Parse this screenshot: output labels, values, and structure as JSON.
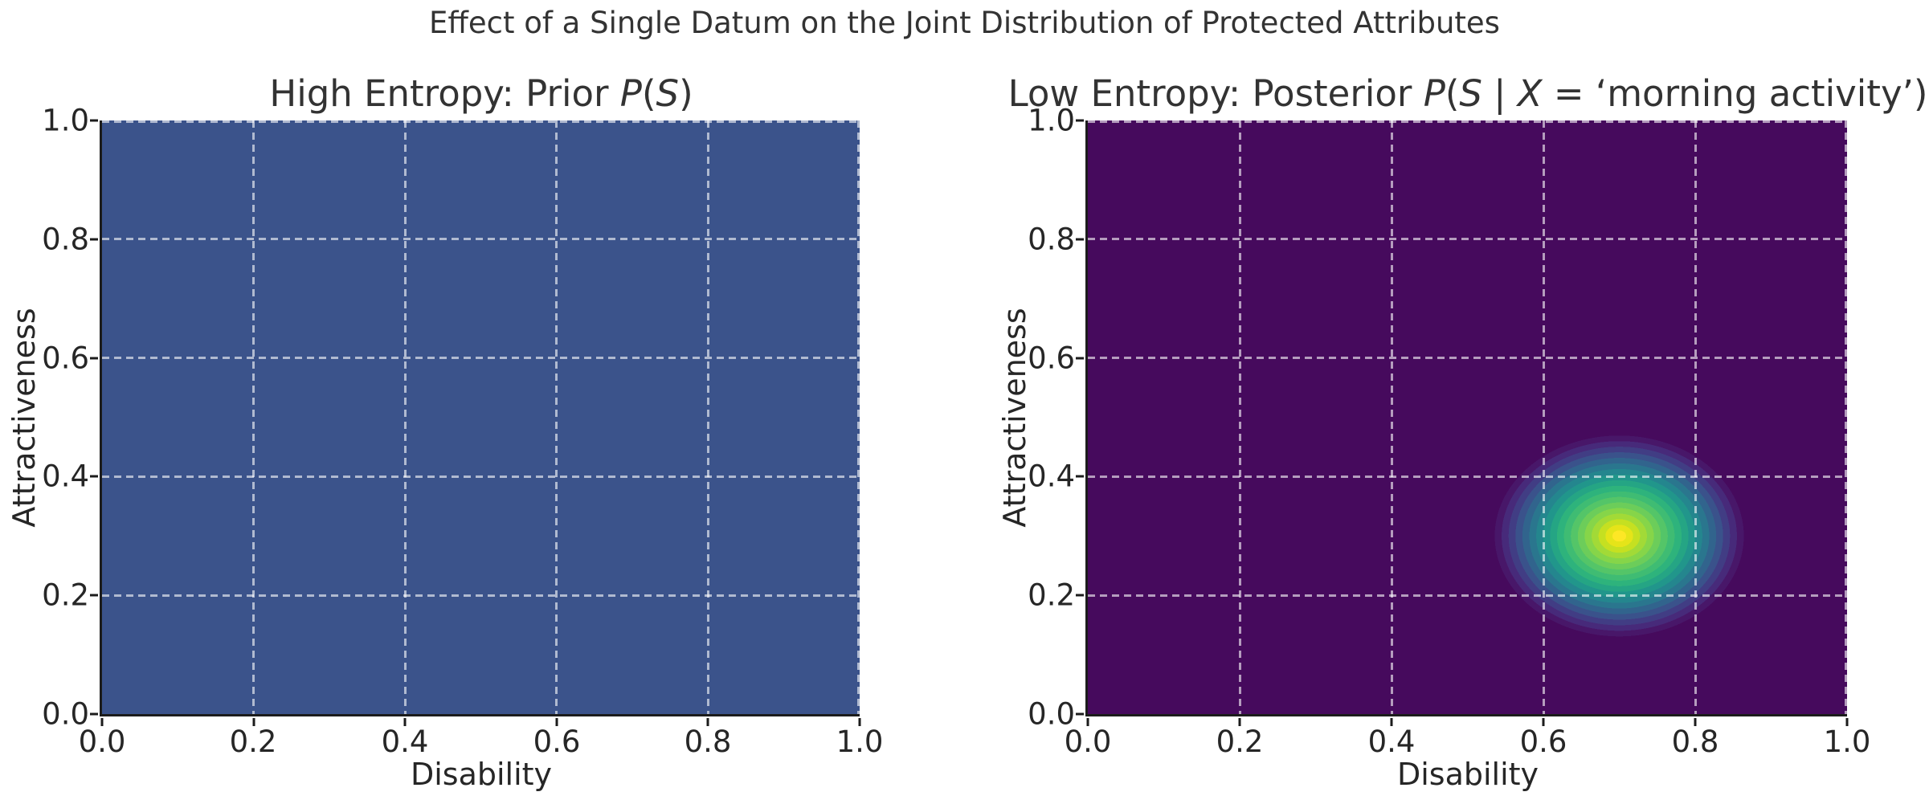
{
  "figure": {
    "suptitle": "Effect of a Single Datum on the Joint Distribution of Protected Attributes",
    "background_color": "#ffffff",
    "text_color": "#333333",
    "grid_color": "rgba(255,255,255,0.60)"
  },
  "axes_shared": {
    "xlabel": "Disability",
    "ylabel": "Attractiveness",
    "xtick_labels": [
      "0.0",
      "0.2",
      "0.4",
      "0.6",
      "0.8",
      "1.0"
    ],
    "ytick_labels_top_to_bottom": [
      "1.0",
      "0.8",
      "0.6",
      "0.4",
      "0.2",
      "0.0"
    ]
  },
  "left_panel": {
    "title_parts": [
      {
        "text": "High Entropy: Prior "
      },
      {
        "text": "P",
        "italic": true
      },
      {
        "text": "("
      },
      {
        "text": "S",
        "italic": true
      },
      {
        "text": ")"
      }
    ]
  },
  "right_panel": {
    "title_parts": [
      {
        "text": "Low Entropy: Posterior "
      },
      {
        "text": "P",
        "italic": true
      },
      {
        "text": "("
      },
      {
        "text": "S",
        "italic": true
      },
      {
        "text": " | "
      },
      {
        "text": "X",
        "italic": true
      },
      {
        "text": " = ‘morning activity’)"
      }
    ]
  },
  "chart_data": [
    {
      "type": "heatmap",
      "panel": "left",
      "title": "High Entropy: Prior P(S)",
      "xlabel": "Disability",
      "ylabel": "Attractiveness",
      "xlim": [
        0.0,
        1.0
      ],
      "ylim": [
        0.0,
        1.0
      ],
      "xticks": [
        0.0,
        0.2,
        0.4,
        0.6,
        0.8,
        1.0
      ],
      "yticks": [
        0.0,
        0.2,
        0.4,
        0.6,
        0.8,
        1.0
      ],
      "grid": true,
      "grid_style": "dashed",
      "distribution": "uniform",
      "density_value": 1.0,
      "fill_color": "#3b538b",
      "colormap": "viridis"
    },
    {
      "type": "contour",
      "panel": "right",
      "title": "Low Entropy: Posterior P(S | X = ‘morning activity’)",
      "xlabel": "Disability",
      "ylabel": "Attractiveness",
      "xlim": [
        0.0,
        1.0
      ],
      "ylim": [
        0.0,
        1.0
      ],
      "xticks": [
        0.0,
        0.2,
        0.4,
        0.6,
        0.8,
        1.0
      ],
      "yticks": [
        0.0,
        0.2,
        0.4,
        0.6,
        0.8,
        1.0
      ],
      "grid": true,
      "grid_style": "dashed",
      "distribution": "gaussian",
      "mean": [
        0.7,
        0.3
      ],
      "std": [
        0.055,
        0.055
      ],
      "peak_value_color": "#fde725",
      "background_color": "#460a5d",
      "colormap": "viridis",
      "contour_colors_center_to_outer": [
        "#fde725",
        "#e5e419",
        "#c5e021",
        "#a2da37",
        "#86d549",
        "#6ccd5a",
        "#54c568",
        "#3fbc73",
        "#2eb37c",
        "#25a584",
        "#21968b",
        "#24868e",
        "#2a768e",
        "#31648d",
        "#3a528b",
        "#413d84",
        "#472a7a",
        "#481769"
      ]
    }
  ]
}
